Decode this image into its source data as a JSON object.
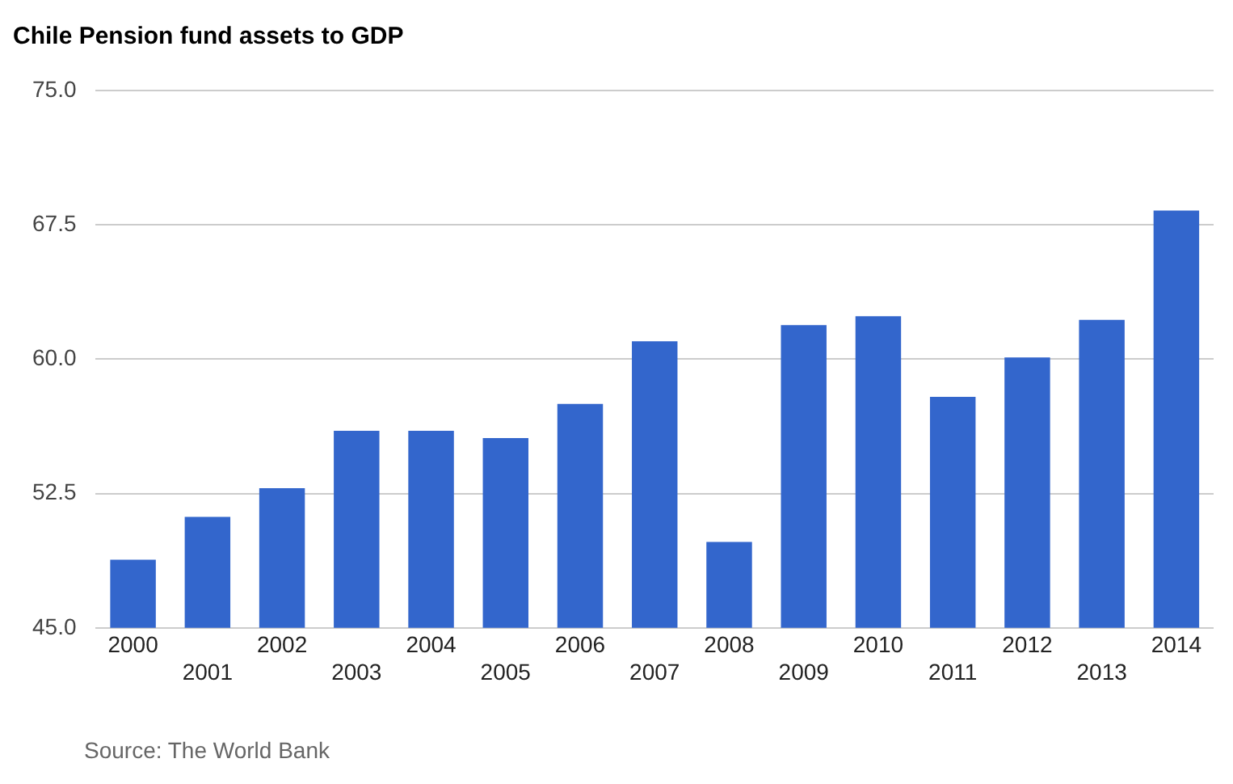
{
  "chart_data": {
    "type": "bar",
    "title": "Chile Pension fund assets to GDP",
    "categories": [
      "2000",
      "2001",
      "2002",
      "2003",
      "2004",
      "2005",
      "2006",
      "2007",
      "2008",
      "2009",
      "2010",
      "2011",
      "2012",
      "2013",
      "2014"
    ],
    "values": [
      48.8,
      51.2,
      52.8,
      56.0,
      56.0,
      55.6,
      57.5,
      61.0,
      49.8,
      61.9,
      62.4,
      57.9,
      60.1,
      62.2,
      68.3
    ],
    "color": "#3366cc",
    "ylim": [
      45,
      75
    ],
    "yticks": [
      {
        "value": 45,
        "label": "45.0"
      },
      {
        "value": 52.5,
        "label": "52.5"
      },
      {
        "value": 60,
        "label": "60.0"
      },
      {
        "value": 67.5,
        "label": "67.5"
      },
      {
        "value": 75,
        "label": "75.0"
      }
    ],
    "grid": "y",
    "annotations": [
      "Source: The World Bank"
    ]
  }
}
